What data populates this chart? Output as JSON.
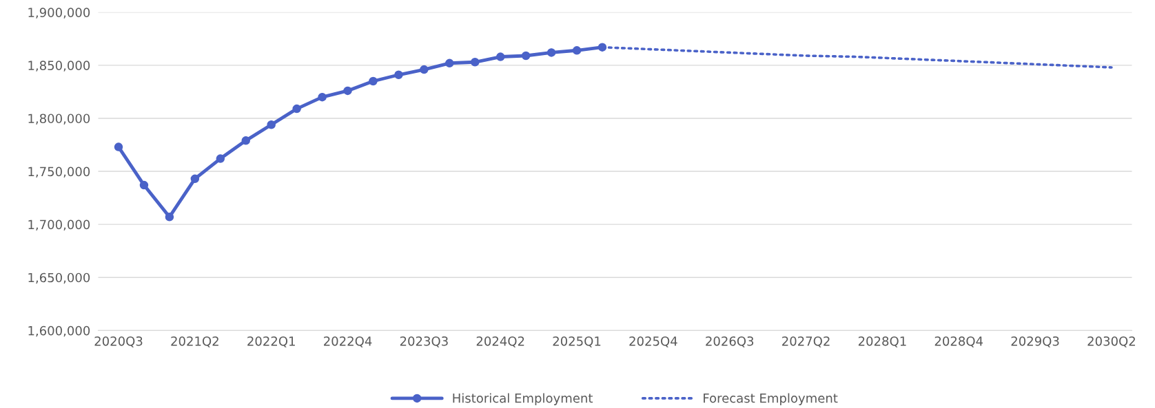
{
  "chart_data": {
    "type": "line",
    "categories": [
      "2020Q3",
      null,
      null,
      "2021Q2",
      null,
      null,
      "2022Q1",
      null,
      null,
      "2022Q4",
      null,
      null,
      "2023Q3",
      null,
      null,
      "2024Q2",
      null,
      null,
      "2025Q1",
      null,
      null,
      "2025Q4",
      null,
      null,
      "2026Q3",
      null,
      null,
      "2027Q2",
      null,
      null,
      "2028Q1",
      null,
      null,
      "2028Q4",
      null,
      null,
      "2029Q3",
      null,
      null,
      "2030Q2"
    ],
    "series": [
      {
        "name": "Historical Employment",
        "color": "#4a62c8",
        "marker": "circle",
        "line_style": "solid",
        "values": [
          1773000,
          1737000,
          1707000,
          1743000,
          1762000,
          1779000,
          1794000,
          1809000,
          1820000,
          1826000,
          1835000,
          1841000,
          1846000,
          1852000,
          1853000,
          1858000,
          1859000,
          1862000,
          1864000,
          1867000,
          null,
          null,
          null,
          null,
          null,
          null,
          null,
          null,
          null,
          null,
          null,
          null,
          null,
          null,
          null,
          null,
          null,
          null,
          null,
          null
        ]
      },
      {
        "name": "Forecast Employment",
        "color": "#4a62c8",
        "marker": "none",
        "line_style": "dotted",
        "values": [
          null,
          null,
          null,
          null,
          null,
          null,
          null,
          null,
          null,
          null,
          null,
          null,
          null,
          null,
          null,
          null,
          null,
          null,
          null,
          1867000,
          1866000,
          1865000,
          1864000,
          1863000,
          1862000,
          1861000,
          1860000,
          1859000,
          1858500,
          1858000,
          1857000,
          1856000,
          1855000,
          1854000,
          1853000,
          1852000,
          1851000,
          1850000,
          1849000,
          1848000
        ]
      }
    ],
    "ylim": [
      1600000,
      1900000
    ],
    "yticks": [
      {
        "value": 1600000,
        "label": "1,600,000"
      },
      {
        "value": 1650000,
        "label": "1,650,000"
      },
      {
        "value": 1700000,
        "label": "1,700,000"
      },
      {
        "value": 1750000,
        "label": "1,750,000"
      },
      {
        "value": 1800000,
        "label": "1,800,000"
      },
      {
        "value": 1850000,
        "label": "1,850,000"
      },
      {
        "value": 1900000,
        "label": "1,900,000"
      }
    ],
    "grid": "y",
    "legend": "bottom"
  }
}
